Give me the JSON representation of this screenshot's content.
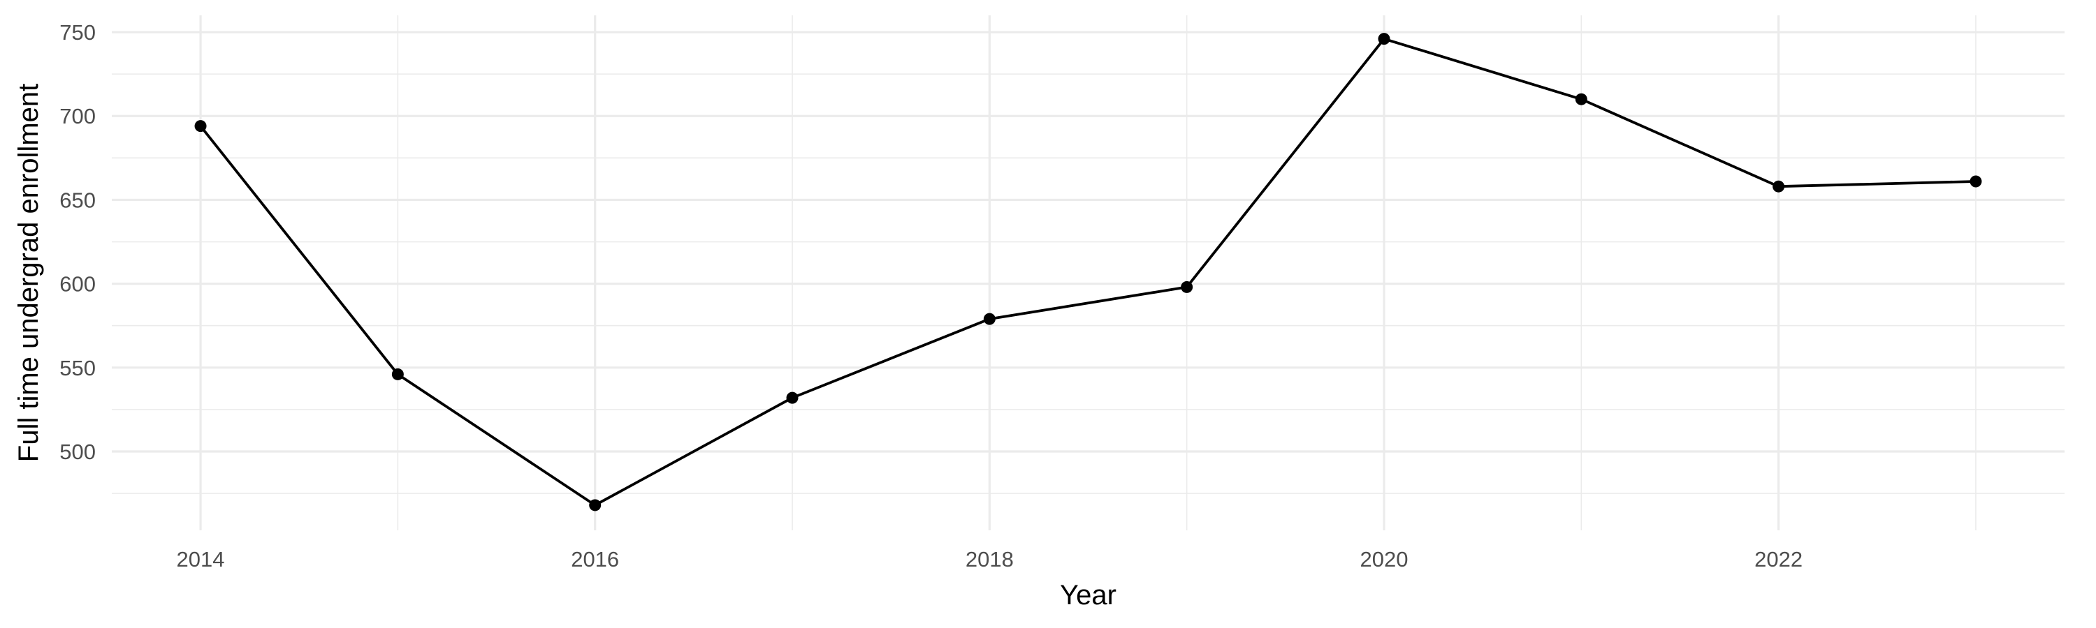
{
  "chart_data": {
    "type": "line",
    "title": "",
    "xlabel": "Year",
    "ylabel": "Full time undergrad enrollment",
    "x": [
      2014,
      2015,
      2016,
      2017,
      2018,
      2019,
      2020,
      2021,
      2022,
      2023
    ],
    "series": [
      {
        "values": [
          694,
          546,
          468,
          532,
          579,
          598,
          746,
          710,
          658,
          661
        ]
      }
    ],
    "xlim": [
      2013.55,
      2023.45
    ],
    "ylim": [
      453,
      760
    ],
    "x_ticks": [
      2014,
      2016,
      2018,
      2020,
      2022
    ],
    "x_tick_labels": [
      "2014",
      "2016",
      "2018",
      "2020",
      "2022"
    ],
    "y_ticks": [
      500,
      550,
      600,
      650,
      700,
      750
    ],
    "y_tick_labels": [
      "500",
      "550",
      "600",
      "650",
      "700",
      "750"
    ],
    "grid": true,
    "legend": "none",
    "colors": {
      "line": "#000000",
      "point": "#000000",
      "grid": "#ebebeb",
      "tick_text": "#4d4d4d",
      "axis_title": "#000000",
      "background": "#ffffff"
    }
  }
}
